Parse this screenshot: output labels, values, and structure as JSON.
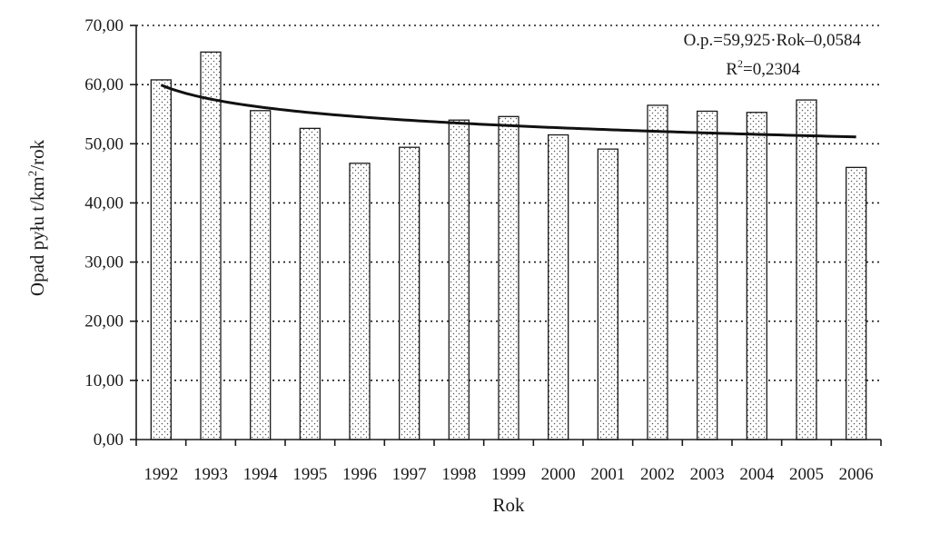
{
  "chart_data": {
    "type": "bar",
    "categories": [
      "1992",
      "1993",
      "1994",
      "1995",
      "1996",
      "1997",
      "1998",
      "1999",
      "2000",
      "2001",
      "2002",
      "2003",
      "2004",
      "2005",
      "2006"
    ],
    "series": [
      {
        "values": [
          60.8,
          65.5,
          55.6,
          52.6,
          46.7,
          49.4,
          54.0,
          54.6,
          51.5,
          49.1,
          56.5,
          55.5,
          55.3,
          57.4,
          46.0
        ]
      }
    ],
    "trendline": {
      "type": "power",
      "coefficient": 59.925,
      "exponent": -0.0584,
      "equation_label": "O.p.=59,925·Rok–0,0584",
      "r2_prefix": "R",
      "r2_sup": "2",
      "r2_rest": "=0,2304"
    },
    "y_ticks": [
      "0,00",
      "10,00",
      "20,00",
      "30,00",
      "40,00",
      "50,00",
      "60,00",
      "70,00"
    ],
    "ylim": [
      0,
      70
    ],
    "ytick_step": 10,
    "xlabel": "Rok",
    "ylabel_part1": "Opad pyłu t/km",
    "ylabel_sup": "2",
    "ylabel_part2": "/rok",
    "grid": "horizontal-dotted",
    "bar_fill": "stippled",
    "colors": {
      "axis": "#1a1a1a",
      "bar_outline": "#1a1a1a",
      "bar_fill": "#ffffff",
      "bar_dots": "#555555",
      "trend": "#111111"
    }
  }
}
